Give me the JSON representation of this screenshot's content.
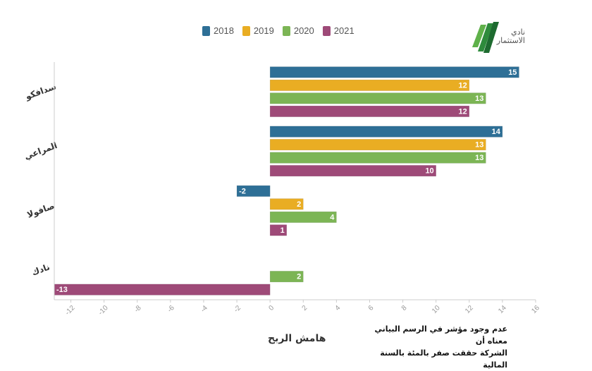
{
  "brand": {
    "line1": "نادي",
    "line2": "الاستثمار",
    "colors": [
      "#5fb14a",
      "#2e8b3c",
      "#1e6b30"
    ],
    "icon": "stripes-logo-icon"
  },
  "note": {
    "line1": "عدم وجود مؤشر في الرسم البياني معناه أن",
    "line2": "الشركة حققت صفر بالمئة بالسنة المالية"
  },
  "chart_data": {
    "type": "bar",
    "orientation": "horizontal",
    "title": "",
    "xlabel": "هامش الربح",
    "ylabel": "",
    "xlim": [
      -13,
      16
    ],
    "xticks": [
      -12,
      -10,
      -8,
      -6,
      -4,
      -2,
      0,
      2,
      4,
      6,
      8,
      10,
      12,
      14,
      16
    ],
    "grid": false,
    "legend_position": "top-center",
    "categories": [
      "سدافكو",
      "المراعي",
      "صافولا",
      "نادك"
    ],
    "series": [
      {
        "name": "2018",
        "color": "#2e6f96",
        "values": [
          15,
          14,
          -2,
          0
        ]
      },
      {
        "name": "2019",
        "color": "#e9ad23",
        "values": [
          12,
          13,
          2,
          0
        ]
      },
      {
        "name": "2020",
        "color": "#7cb555",
        "values": [
          13,
          13,
          4,
          2
        ]
      },
      {
        "name": "2021",
        "color": "#9e4a78",
        "values": [
          12,
          10,
          1,
          -13
        ]
      }
    ]
  }
}
